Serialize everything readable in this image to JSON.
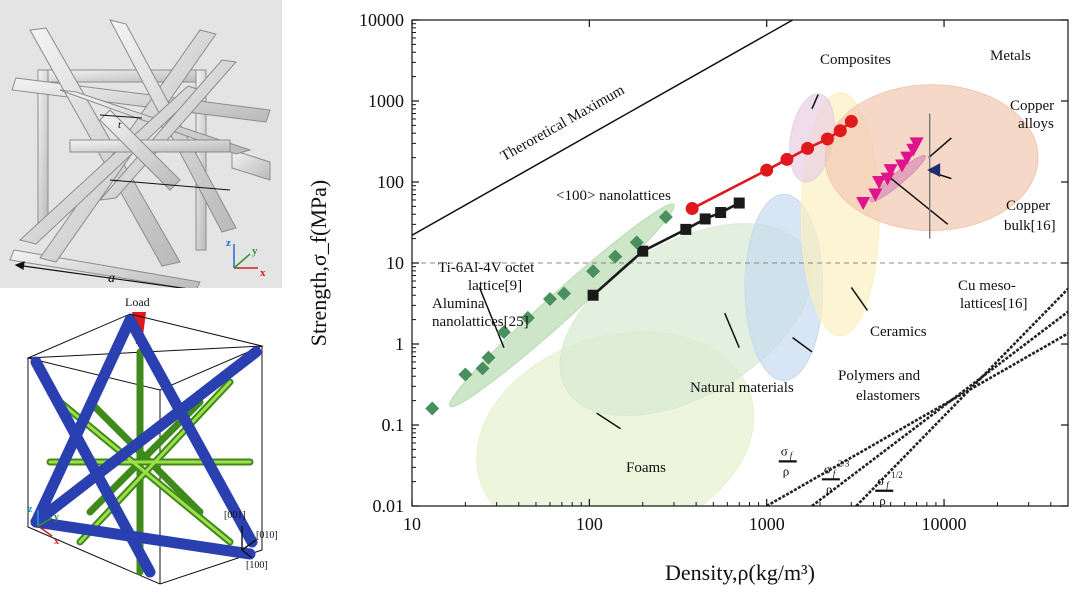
{
  "figure": {
    "top_left": {
      "edge_label": "a",
      "strut_label": "t",
      "axis_x": "x",
      "axis_y": "y",
      "axis_z": "z"
    },
    "bottom_left": {
      "load_label": "Load",
      "dir_001": "[001]",
      "dir_010": "[010]",
      "dir_100": "[100]",
      "axis_x": "x",
      "axis_y": "y",
      "axis_z": "z"
    }
  },
  "colors": {
    "nanolattice_red": "#e0191c",
    "ti_black": "#1a1a1a",
    "alumina_green": "#4a8f60",
    "cu_magenta": "#e0138c",
    "copper_bulk_blue": "#1f2d6e",
    "metals_fill": "#f2c7b0",
    "ceramics_fill": "#fbf0c0",
    "polymers_fill": "#c6daf0",
    "natural_fill": "#d7ead3",
    "foams_fill": "#e6f2cf",
    "composites_fill": "#e9cfe2",
    "alumina_fill": "#b8dcb0"
  },
  "chart_data": {
    "type": "scatter",
    "scale": "log-log",
    "xlabel": "Density,ρ(kg/m³)",
    "ylabel": "Strength,σ_f(MPa)",
    "xlim": [
      10,
      50000
    ],
    "ylim": [
      0.01,
      10000
    ],
    "x_ticks": [
      {
        "value": 10,
        "label": "10"
      },
      {
        "value": 100,
        "label": "100"
      },
      {
        "value": 1000,
        "label": "1000"
      },
      {
        "value": 10000,
        "label": "10000"
      }
    ],
    "y_ticks": [
      {
        "value": 10000,
        "label": "10000"
      },
      {
        "value": 1000,
        "label": "1000"
      },
      {
        "value": 100,
        "label": "100"
      },
      {
        "value": 10,
        "label": "10"
      },
      {
        "value": 1,
        "label": "1"
      },
      {
        "value": 0.1,
        "label": "0.1"
      },
      {
        "value": 0.01,
        "label": "0.01"
      }
    ],
    "reference_line_y": 10,
    "theoretical_maximum": {
      "label": "Theroretical Maximum",
      "points": [
        [
          10,
          22
        ],
        [
          1400,
          10000
        ]
      ]
    },
    "material_regions": [
      {
        "name": "foams",
        "label": "Foams",
        "cx": 140,
        "cy": 0.07,
        "rx_dec": 0.8,
        "ry_dec": 1.25,
        "angle": -18,
        "color": "#e6f2cf"
      },
      {
        "name": "natural",
        "label": "Natural materials",
        "cx": 350,
        "cy": 2.0,
        "rx_dec": 0.78,
        "ry_dec": 0.95,
        "angle": -30,
        "color": "#d7ead3"
      },
      {
        "name": "polymers",
        "label": "Polymers and elastomers",
        "cx": 1250,
        "cy": 5,
        "rx_dec": 0.22,
        "ry_dec": 1.15,
        "angle": 0,
        "color": "#c6daf0"
      },
      {
        "name": "ceramics",
        "label": "Ceramics",
        "cx": 2600,
        "cy": 40,
        "rx_dec": 0.22,
        "ry_dec": 1.5,
        "angle": 0,
        "color": "#fbf0c0"
      },
      {
        "name": "composites",
        "label": "Composites",
        "cx": 1800,
        "cy": 350,
        "rx_dec": 0.12,
        "ry_dec": 0.55,
        "angle": 10,
        "color": "#e9cfe2"
      },
      {
        "name": "metals",
        "label": "Metals",
        "cx": 8500,
        "cy": 200,
        "rx_dec": 0.6,
        "ry_dec": 0.9,
        "angle": 0,
        "color": "#f2c7b0"
      },
      {
        "name": "alumina",
        "label": "Alumina nanolattices[25]",
        "cx": 70,
        "cy": 3.0,
        "rx_dec": 0.85,
        "ry_dec": 0.17,
        "angle": -42,
        "color": "#b8dcb0"
      },
      {
        "name": "cu-meso",
        "label": "Cu meso-lattices[16]",
        "cx": 5500,
        "cy": 110,
        "rx_dec": 0.2,
        "ry_dec": 0.07,
        "angle": -40,
        "color": "#d98fb8"
      }
    ],
    "series": [
      {
        "name": "<100> nanolattices",
        "marker": "circle",
        "color": "#e0191c",
        "connected": true,
        "x": [
          380,
          1000,
          1300,
          1700,
          2200,
          2600,
          3000
        ],
        "y": [
          47,
          140,
          190,
          260,
          340,
          430,
          560
        ]
      },
      {
        "name": "Ti-6Al-4V octet lattice[9]",
        "marker": "square",
        "color": "#1a1a1a",
        "connected": true,
        "x": [
          105,
          200,
          350,
          450,
          550,
          700
        ],
        "y": [
          4,
          14,
          26,
          35,
          42,
          55
        ]
      },
      {
        "name": "Alumina nanolattices[25]",
        "marker": "diamond",
        "color": "#4a8f60",
        "connected": false,
        "x": [
          13,
          20,
          25,
          27,
          33,
          45,
          60,
          72,
          105,
          140,
          185,
          270
        ],
        "y": [
          0.16,
          0.42,
          0.5,
          0.68,
          1.4,
          2.1,
          3.6,
          4.2,
          7.9,
          12,
          18,
          37
        ]
      },
      {
        "name": "Cu meso-lattices[16]",
        "marker": "triangle-down",
        "color": "#e0138c",
        "connected": false,
        "x": [
          3500,
          4100,
          4300,
          4800,
          5000,
          5800,
          6200,
          6700,
          7000
        ],
        "y": [
          55,
          70,
          100,
          110,
          140,
          160,
          200,
          250,
          300
        ]
      },
      {
        "name": "Copper bulk[16]",
        "marker": "triangle-left",
        "color": "#1f2d6e",
        "connected": false,
        "x": [
          8800
        ],
        "y": [
          140
        ]
      }
    ],
    "guide_lines": [
      {
        "name": "sigma-over-rho",
        "label_top": "σ",
        "label_sub": "f",
        "label_bottom": "ρ",
        "points": [
          [
            1000,
            0.01
          ],
          [
            50000,
            1.35
          ]
        ]
      },
      {
        "name": "sigma23-over-rho",
        "label_top": "σ",
        "label_sub": "f",
        "label_sup": "2/3",
        "label_bottom": "ρ",
        "points": [
          [
            1800,
            0.01
          ],
          [
            50000,
            2.5
          ]
        ]
      },
      {
        "name": "sigma12-over-rho",
        "label_top": "σ",
        "label_sub": "f",
        "label_sup": "1/2",
        "label_bottom": "ρ",
        "points": [
          [
            3200,
            0.01
          ],
          [
            50000,
            4.8
          ]
        ]
      }
    ],
    "annotations": {
      "theoretical": "Theroretical Maximum",
      "nanolattice": "<100> nanolattices",
      "ti_line1": "Ti-6Al-4V octet",
      "ti_line2": "lattice[9]",
      "alumina_line1": "Alumina",
      "alumina_line2": "nanolattices[25]",
      "composites": "Composites",
      "metals": "Metals",
      "copper_alloys_1": "Copper",
      "copper_alloys_2": "alloys",
      "copper_bulk_1": "Copper",
      "copper_bulk_2": "bulk[16]",
      "cu_meso_1": "Cu meso-",
      "cu_meso_2": "lattices[16]",
      "ceramics": "Ceramics",
      "polymers_1": "Polymers and",
      "polymers_2": "elastomers",
      "natural": "Natural materials",
      "foams": "Foams"
    }
  }
}
